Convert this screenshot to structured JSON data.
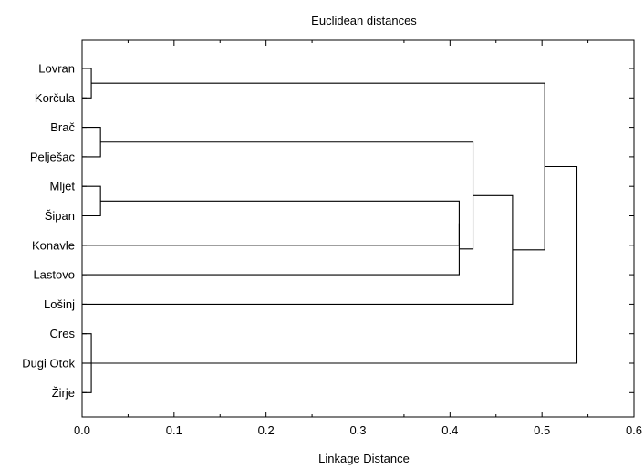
{
  "chart_data": {
    "type": "dendrogram",
    "title": "Euclidean distances",
    "xlabel": "Linkage Distance",
    "ylabel": "",
    "xlim": [
      0.0,
      0.6
    ],
    "x_ticks": [
      "0.0",
      "0.1",
      "0.2",
      "0.3",
      "0.4",
      "0.5",
      "0.6"
    ],
    "grid": false,
    "leaves": [
      "Lovran",
      "Korčula",
      "Brač",
      "Pelješac",
      "Mljet",
      "Šipan",
      "Konavle",
      "Lastovo",
      "Lošinj",
      "Cres",
      "Dugi Otok",
      "Žirje"
    ],
    "merges": [
      {
        "id": "m1",
        "left": "Lovran",
        "right": "Korčula",
        "distance": 0.01
      },
      {
        "id": "m2",
        "left": "Brač",
        "right": "Pelješac",
        "distance": 0.02
      },
      {
        "id": "m3",
        "left": "Mljet",
        "right": "Šipan",
        "distance": 0.02
      },
      {
        "id": "m4",
        "left": "Cres",
        "right": "Žirje",
        "distance": 0.01
      },
      {
        "id": "m5",
        "left": "Dugi Otok",
        "right": "m4",
        "distance": 0.01
      },
      {
        "id": "m6",
        "left": "m3",
        "right": "Konavle",
        "distance": 0.41
      },
      {
        "id": "m7",
        "left": "m6",
        "right": "Lastovo",
        "distance": 0.41
      },
      {
        "id": "m8",
        "left": "m2",
        "right": "m7",
        "distance": 0.425
      },
      {
        "id": "m9",
        "left": "m8",
        "right": "Lošinj",
        "distance": 0.468
      },
      {
        "id": "m10",
        "left": "m1",
        "right": "m9",
        "distance": 0.503
      },
      {
        "id": "m11",
        "left": "m10",
        "right": "m5",
        "distance": 0.538
      }
    ]
  }
}
